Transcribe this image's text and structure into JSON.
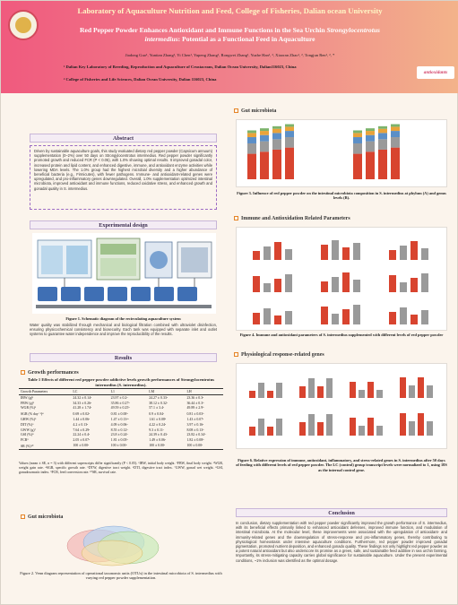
{
  "header": {
    "lab": "Laboratory of Aquaculture Nutrition and Feed, College of Fisheries, Dalian ocean University",
    "title_line1_a": "Red Pepper Powder Enhances Antioxidant and Immune Functions in the Sea Urchin ",
    "title_line1_b": "Strongylocentrotus",
    "title_line2_a": "intermedius",
    "title_line2_b": ": Potential as a Functional Feed in Aquaculture",
    "authors": "Jiadong Guo¹, Yuntian Zhang¹, Yi Chen¹, Yupeng Zhang¹, Rongwei Zhang¹, Yuzhe Han¹, ², Xiaoran Zhao¹, ², Tongjun Ren¹, ², *",
    "aff1": "¹ Dalian Key Laboratory of Breeding, Reproduction and Aquaculture of Crustaceans, Dalian Ocean University, Dalian116023, China",
    "aff2": "² College of Fisheries and Life Sciences, Dalian Ocean University, Dalian 116023, China",
    "logo_text": "antioxidants"
  },
  "abstract": {
    "heading": "Abstract",
    "text": "Driven by sustainable aquaculture goals, this study evaluated dietary red pepper powder (Capsicum annuum) supplementation (0–2%) over 50 days on Strongylocentrotus intermedius. Red pepper powder significantly promoted growth and reduced FCR (P < 0.05), with 1.0% showing optimal results. It improved gonadal color, increased protein and lipid content, and enhanced digestive, immune, and antioxidant enzyme activities while lowering MDA levels. The 1.0% group had the highest microbial diversity and a higher abundance of beneficial bacteria (e.g., Firmicutes), with fewer pathogens. Immune- and antioxidant-related genes were upregulated, and pro-inflammatory genes downregulated. Overall, 1.0% supplementation optimized intestinal microbiota, improved antioxidant and immune functions, reduced oxidative stress, and enhanced growth and gonadal quality in S. intermedius."
  },
  "design": {
    "heading": "Experimental design",
    "caption": "Figure 1. Schematic diagram of the recirculating aquaculture system",
    "text": "Water quality was stabilized through mechanical and biological filtration combined with ultraviolet disinfection, ensuring physicochemical consistency and biosecurity. Each tank was equipped with separate inlet and outlet systems to guarantee water independence and improve the reproducibility of the results."
  },
  "results": {
    "heading": "Results",
    "growth_heading": "Growth performances",
    "table_title": "Table 1 Effects of different red pepper powder addictive levels growth performances of Strongylocentrotus intermedius (S. intermedius).",
    "columns": [
      "Growth Parameters",
      "LC",
      "L1",
      "LM",
      "LH"
    ],
    "rows": [
      [
        "IBW (g)¹",
        "24.32 ± 0.14ᵃ",
        "23.97 ± 0.2ᵃ",
        "24.27 ± 0.33ᵃ",
        "23.36 ± 0.3ᵃ"
      ],
      [
        "FBW (g)²",
        "34.33 ± 0.26ᵃ",
        "35.86 ± 0.27ᵇ",
        "38.12 ± 0.32ᶜ",
        "36.44 ± 0.3ᵇ"
      ],
      [
        "WGR (%)³",
        "41.28 ± 1.74ᵃ",
        "49.59 ± 0.25ᵇ",
        "57.1 ± 3.4ᶜ",
        "49.89 ± 2.9ᵇ"
      ],
      [
        "SGR (% day⁻¹)⁴",
        "0.69 ± 0.02ᵃ",
        "0.81 ± 0.00ᵇ",
        "0.9 ± 0.04ᶜ",
        "0.81 ± 0.03ᵇ"
      ],
      [
        "GHW (%)⁵",
        "1.44 ± 0.06ᵃ",
        "1.47 ± 0.13ᵃᵇ",
        "1.61 ± 0.08ᵇ",
        "1.43 ± 0.07ᵃ"
      ],
      [
        "DIT (%)⁶",
        "4.2 ± 0.13ᵃ",
        "4.09 ± 0.06ᵃ",
        "4.22 ± 0.24ᵃ",
        "3.97 ± 0.16ᵃ"
      ],
      [
        "GWW (g)⁷",
        "7.64 ± 0.29ᵃ",
        "8.55 ± 0.12ᵇ",
        "9.3 ± 0.11ᶜ",
        "8.08 ± 0.13ᵇ"
      ],
      [
        "GSI (%)⁸",
        "22.24 ± 0.4ᵃ",
        "23.8 ± 0.24ᵇ",
        "24.39 ± 0.43ᶜ",
        "23.82 ± 0.34ᵇ"
      ],
      [
        "FCR⁹",
        "2.05 ± 0.07ᵃ",
        "1.81 ± 0.05ᵇ",
        "1.49 ± 0.06ᶜ",
        "1.82 ± 0.08ᵇ"
      ],
      [
        "SR (%)¹⁰",
        "100 ± 0.00ᵃ",
        "100 ± 0.00ᵃ",
        "100 ± 0.00ᵃ",
        "100 ± 0.00ᵃ"
      ]
    ],
    "table_note": "Values (mean ± SE, n = 3) with different superscripts differ significantly (P < 0.05). ¹IBW, initial body weight. ²FBW, final body weight. ³WGR, weight gain rate. ⁴SGR, specific growth rate. ⁵DTW, digestive tract weight. ⁶DTI, digestive tract index. ⁷GWW, gonad wet weight. ⁸GSI, gonadosomatic index. ⁹FCR, feed conversion rate. ¹⁰SR, survival rate.",
    "gut_heading_left": "Gut microbiota",
    "venn_caption": "Figure 2. Venn diagram representation of operational taxonomic units (OTUs) in the intestinal microbiota of S. intermedius with varying red pepper powder supplementation.",
    "gut_heading_right": "Gut microbiota",
    "gut_caption": "Figure 3. Influence of red pepper powder on the intestinal microbiota composition in S. intermedius at phylum (A) and genus levels (B).",
    "immune_heading": "Immune and Antioxidation Related Parameters",
    "immune_caption": "Figure 4. Immune and antioxidant parameters of S. intermedius supplemented with different levels of red pepper powder",
    "genes_heading": "Physiological response-related genes",
    "genes_caption": "Figure 6. Relative expression of immune, antioxidant, inflammatory, and stress-related genes in S. intermedius after 50 days of feeding with different levels of red pepper powder. The LC (control) group transcript levels were normalized to 1, using 18S as the internal control gene."
  },
  "conclusion": {
    "heading": "Conclusion",
    "text": "In conclusion, dietary supplementation with red pepper powder significantly improved the growth performance of S. intermedius, with its beneficial effects primarily linked to enhanced antioxidant defenses, improved immune function, and modulation of intestinal microbiota. At the molecular level, these improvements were associated with the upregulation of antioxidant- and immunity-related genes and the downregulation of stress-response and pro-inflammatory genes, thereby contributing to physiological homeostasis under intensive aquaculture conditions. Furthermore, red pepper powder improved gonadal pigmentation, promoted nutrient deposition, and enhanced gonado quality. These findings not only highlight red pepper powder as a potent natural antioxidant but also underscore its promise as a green, safe, and sustainable feed additive in sea urchin farming. Importantly, its stress-mitigating capacity carries global significance for sustainable aquaculture. Under the present experimental conditions, ~1% inclusion was identified as the optimal dosage."
  },
  "colors": {
    "header_start": "#f05a7e",
    "header_end": "#f3b38a",
    "bar_red": "#d8442f",
    "bar_grey": "#9a9a9a",
    "accent_orange": "#e58426"
  }
}
